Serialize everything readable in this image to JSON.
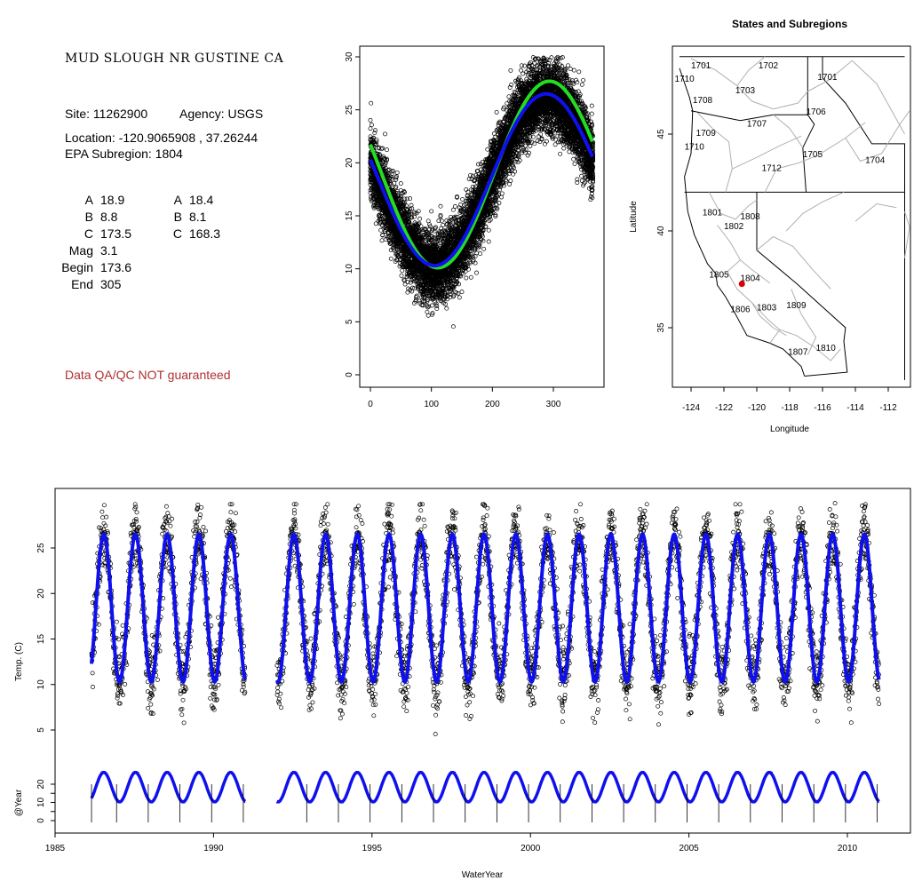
{
  "site": {
    "title": "MUD SLOUGH NR GUSTINE CA",
    "site_line": "Site: 11262900",
    "agency_line": "Agency: USGS",
    "location_line": "Location: -120.9065908 , 37.26244",
    "subregion_line": "EPA Subregion: 1804",
    "params_left": [
      {
        "label": "A",
        "value": "18.9"
      },
      {
        "label": "B",
        "value": "8.8"
      },
      {
        "label": "C",
        "value": "173.5"
      },
      {
        "label": "Mag",
        "value": "3.1"
      },
      {
        "label": "Begin",
        "value": "173.6"
      },
      {
        "label": "End",
        "value": "305"
      }
    ],
    "params_right": [
      {
        "label": "A",
        "value": "18.4"
      },
      {
        "label": "B",
        "value": "8.1"
      },
      {
        "label": "C",
        "value": "168.3"
      }
    ],
    "qa_note": "Data QA/QC NOT guaranteed"
  },
  "colors": {
    "fit_blue": "#1010ee",
    "fit_green": "#22dd22",
    "site_red": "#dd0000",
    "boundary_grey": "#b0b0b0",
    "qa_red": "#b03030"
  },
  "chart_data": [
    {
      "type": "scatter",
      "x_ticks": [
        "0",
        "100",
        "200",
        "300"
      ],
      "y_ticks": [
        "0",
        "5",
        "10",
        "15",
        "20",
        "25",
        "30"
      ],
      "xlim": [
        0,
        366
      ],
      "ylim": [
        0,
        30
      ],
      "scatter_model": {
        "mean": 18.4,
        "amplitude": 8.1,
        "phase_day": 168.3,
        "spread": 2.4,
        "ymin": 4,
        "ymax": 30
      },
      "series": [
        {
          "color": "green",
          "mean": 18.9,
          "amplitude": 8.8,
          "phase_day": 173.5
        },
        {
          "color": "blue",
          "mean": 18.4,
          "amplitude": 8.1,
          "phase_day": 168.3
        }
      ]
    },
    {
      "type": "map",
      "title": "States and Subregions",
      "xlabel": "Longitude",
      "ylabel": "Latitude",
      "x_ticks": [
        "-124",
        "-122",
        "-120",
        "-118",
        "-116",
        "-114",
        "-112"
      ],
      "y_ticks": [
        "35",
        "40",
        "45"
      ],
      "xlim": [
        -125.7,
        -110.7
      ],
      "ylim": [
        32.3,
        49.8
      ],
      "site": {
        "lon": -120.9065908,
        "lat": 37.26244
      },
      "regions": [
        {
          "label": "1701",
          "lon": -123.4,
          "lat": 48.4
        },
        {
          "label": "1702",
          "lon": -119.3,
          "lat": 48.4
        },
        {
          "label": "1701",
          "lon": -115.7,
          "lat": 47.8
        },
        {
          "label": "1710",
          "lon": -124.4,
          "lat": 47.7
        },
        {
          "label": "1703",
          "lon": -120.7,
          "lat": 47.1
        },
        {
          "label": "1708",
          "lon": -123.3,
          "lat": 46.6
        },
        {
          "label": "1706",
          "lon": -116.4,
          "lat": 46.0
        },
        {
          "label": "1707",
          "lon": -120.0,
          "lat": 45.4
        },
        {
          "label": "1709",
          "lon": -123.1,
          "lat": 44.9
        },
        {
          "label": "1710",
          "lon": -123.8,
          "lat": 44.2
        },
        {
          "label": "1705",
          "lon": -116.6,
          "lat": 43.8
        },
        {
          "label": "1704",
          "lon": -112.8,
          "lat": 43.5
        },
        {
          "label": "1712",
          "lon": -119.1,
          "lat": 43.1
        },
        {
          "label": "1801",
          "lon": -122.7,
          "lat": 40.8
        },
        {
          "label": "1808",
          "lon": -120.4,
          "lat": 40.6
        },
        {
          "label": "1802",
          "lon": -121.4,
          "lat": 40.1
        },
        {
          "label": "1805",
          "lon": -122.3,
          "lat": 37.6
        },
        {
          "label": "1804",
          "lon": -120.4,
          "lat": 37.4
        },
        {
          "label": "1806",
          "lon": -121.0,
          "lat": 35.8
        },
        {
          "label": "1803",
          "lon": -119.4,
          "lat": 35.9
        },
        {
          "label": "1809",
          "lon": -117.6,
          "lat": 36.0
        },
        {
          "label": "1807",
          "lon": -117.5,
          "lat": 33.6
        },
        {
          "label": "1810",
          "lon": -115.8,
          "lat": 33.8
        }
      ]
    },
    {
      "type": "line",
      "xlabel": "WaterYear",
      "ylabel": "Temp. (C)",
      "ylabel2": "@Year",
      "x_ticks": [
        "1985",
        "1990",
        "1995",
        "2000",
        "2005",
        "2010"
      ],
      "y_ticks": [
        "5",
        "10",
        "15",
        "20",
        "25"
      ],
      "y_ticks2": [
        "0",
        "10",
        "20"
      ],
      "xlim": [
        1985.0,
        2012.0
      ],
      "ylim": [
        3.0,
        30.5
      ],
      "ylim2": [
        -2,
        30
      ],
      "x_start": 1986.15,
      "x_end": 2011.0,
      "gap": [
        1991.0,
        1992.0
      ],
      "mean": 18.4,
      "amplitude": 8.1,
      "phase_day": 168.3,
      "water_year_markers": [
        1987,
        1988,
        1989,
        1990,
        1991,
        1992,
        1993,
        1994,
        1995,
        1996,
        1997,
        1998,
        1999,
        2000,
        2001,
        2002,
        2003,
        2004,
        2005,
        2006,
        2007,
        2008,
        2009,
        2010,
        2011
      ]
    }
  ]
}
